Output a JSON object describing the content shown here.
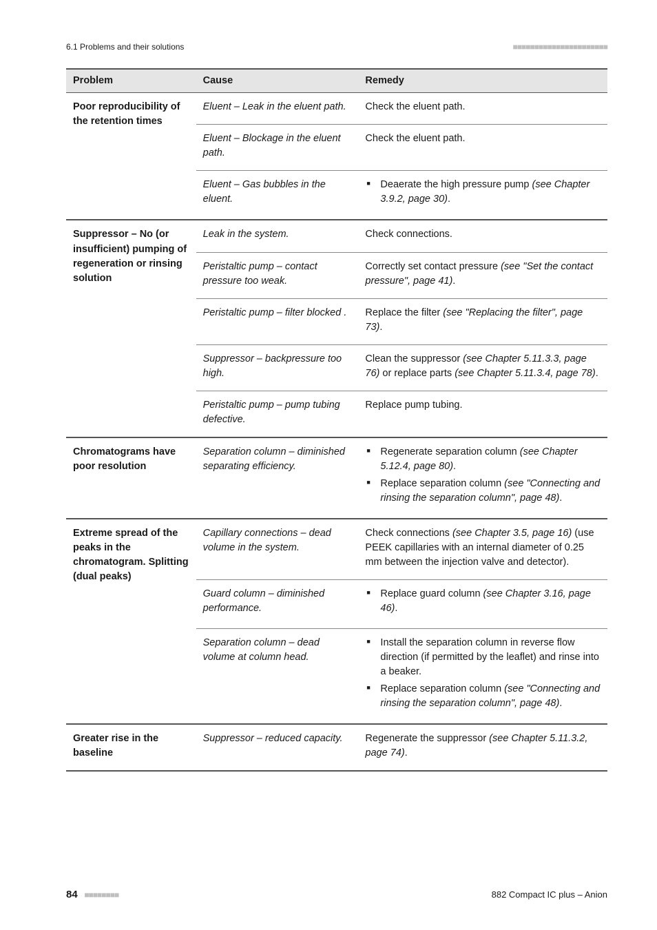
{
  "header": {
    "section": "6.1 Problems and their solutions",
    "header_dots": "■■■■■■■■■■■■■■■■■■■■■■"
  },
  "columns": [
    "Problem",
    "Cause",
    "Remedy"
  ],
  "groups": [
    {
      "problem": "Poor reproducibility of the retention times",
      "rows": [
        {
          "cause": "Eluent – Leak in the eluent path.",
          "remedy": {
            "type": "plain",
            "text": "Check the eluent path."
          }
        },
        {
          "cause": "Eluent – Blockage in the eluent path.",
          "remedy": {
            "type": "plain",
            "text": "Check the eluent path."
          }
        },
        {
          "cause": "Eluent – Gas bubbles in the eluent.",
          "remedy": {
            "type": "list",
            "items": [
              {
                "pre": "Deaerate the high pressure pump ",
                "ital": "(see Chapter 3.9.2, page 30)",
                "post": "."
              }
            ]
          }
        }
      ]
    },
    {
      "problem": "Suppressor – No (or insufficient) pumping of regeneration or rinsing solution",
      "rows": [
        {
          "cause": "Leak in the system.",
          "remedy": {
            "type": "plain",
            "text": "Check connections."
          }
        },
        {
          "cause": "Peristaltic pump – contact pressure too weak.",
          "remedy": {
            "type": "mixed",
            "pre": "Correctly set contact pressure ",
            "ital": "(see \"Set the contact pressure\", page 41)",
            "post": "."
          }
        },
        {
          "cause": "Peristaltic pump – filter blocked .",
          "remedy": {
            "type": "mixed",
            "pre": "Replace the filter ",
            "ital": "(see \"Replacing the filter\", page 73)",
            "post": "."
          }
        },
        {
          "cause": "Suppressor – backpressure too high.",
          "remedy": {
            "type": "mixed2",
            "pre": "Clean the suppressor ",
            "ital": "(see Chapter 5.11.3.3, page 76)",
            "mid": " or replace parts ",
            "ital2": "(see Chapter 5.11.3.4, page 78)",
            "post": "."
          }
        },
        {
          "cause": "Peristaltic pump – pump tubing defective.",
          "remedy": {
            "type": "plain",
            "text": "Replace pump tubing."
          }
        }
      ]
    },
    {
      "problem": "Chromatograms have poor resolution",
      "rows": [
        {
          "cause": "Separation column – diminished separating efficiency.",
          "remedy": {
            "type": "list",
            "items": [
              {
                "pre": "Regenerate separation column ",
                "ital": "(see Chapter 5.12.4, page 80)",
                "post": "."
              },
              {
                "pre": "Replace separation column ",
                "ital": "(see \"Connecting and rinsing the separation column\", page 48)",
                "post": "."
              }
            ]
          }
        }
      ]
    },
    {
      "problem": "Extreme spread of the peaks in the chromatogram. Splitting (dual peaks)",
      "rows": [
        {
          "cause": "Capillary connections – dead volume in the system.",
          "remedy": {
            "type": "mixed",
            "pre": "Check connections ",
            "ital": "(see Chapter 3.5, page 16)",
            "post": " (use PEEK capillaries with an internal diameter of 0.25 mm between the injection valve and detector)."
          }
        },
        {
          "cause": "Guard column – diminished performance.",
          "remedy": {
            "type": "list",
            "items": [
              {
                "pre": "Replace guard column ",
                "ital": "(see Chapter 3.16, page 46)",
                "post": "."
              }
            ]
          }
        },
        {
          "cause": "Separation column – dead volume at column head.",
          "remedy": {
            "type": "list",
            "items": [
              {
                "pre": "Install the separation column in reverse flow direction (if permitted by the leaflet) and rinse into a beaker.",
                "ital": "",
                "post": ""
              },
              {
                "pre": "Replace separation column ",
                "ital": "(see \"Connecting and rinsing the separation column\", page 48)",
                "post": "."
              }
            ]
          }
        }
      ]
    },
    {
      "problem": "Greater rise in the baseline",
      "rows": [
        {
          "cause": "Suppressor – reduced capacity.",
          "remedy": {
            "type": "mixed",
            "pre": "Regenerate the suppressor ",
            "ital": "(see Chapter 5.11.3.2, page 74)",
            "post": "."
          }
        }
      ]
    }
  ],
  "footer": {
    "page_number": "84",
    "footer_dots": "■■■■■■■■",
    "doc_title": "882 Compact IC plus – Anion"
  }
}
